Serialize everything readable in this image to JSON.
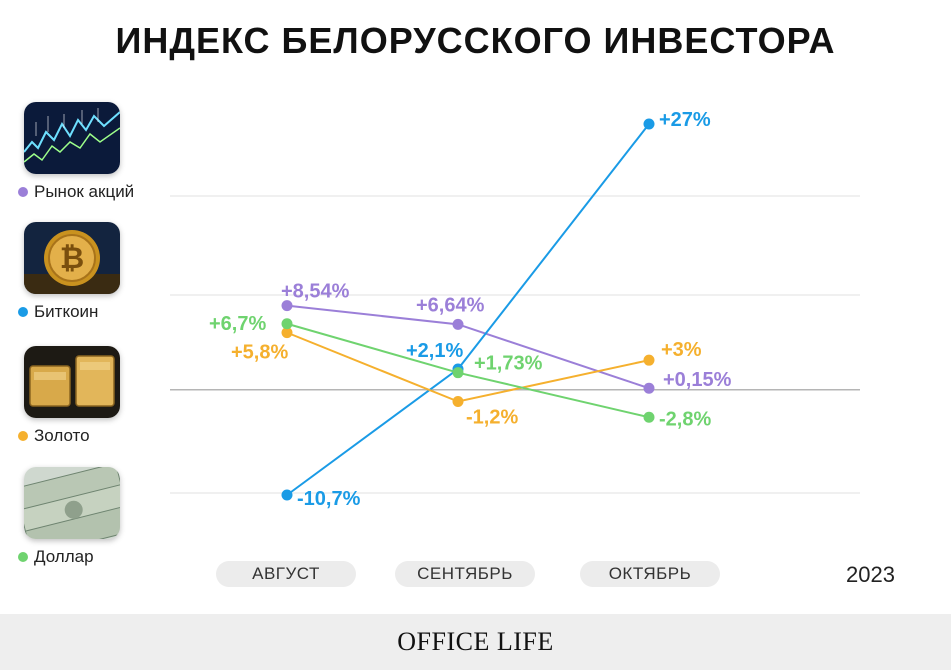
{
  "title": "ИНДЕКС БЕЛОРУССКОГО ИНВЕСТОРА",
  "legend": [
    {
      "label": "Рынок акций",
      "color": "#9b7fd8",
      "icon": "stock-chart-image"
    },
    {
      "label": "Биткоин",
      "color": "#1a9be6",
      "icon": "bitcoin-image"
    },
    {
      "label": "Золото",
      "color": "#f5b02e",
      "icon": "gold-bars-image"
    },
    {
      "label": "Доллар",
      "color": "#6fd36f",
      "icon": "dollar-bills-image"
    }
  ],
  "months": [
    "АВГУСТ",
    "СЕНТЯБРЬ",
    "ОКТЯБРЬ"
  ],
  "year": "2023",
  "footer": "OFFICE LIFE",
  "chart_data": {
    "type": "line",
    "x": [
      "АВГУСТ",
      "СЕНТЯБРЬ",
      "ОКТЯБРЬ"
    ],
    "series": [
      {
        "name": "Рынок акций",
        "color": "#9b7fd8",
        "values": [
          8.54,
          6.64,
          0.15
        ],
        "labels": [
          "+8,54%",
          "+6,64%",
          "+0,15%"
        ]
      },
      {
        "name": "Биткоин",
        "color": "#1a9be6",
        "values": [
          -10.7,
          2.1,
          27
        ],
        "labels": [
          "-10,7%",
          "+2,1%",
          "+27%"
        ]
      },
      {
        "name": "Золото",
        "color": "#f5b02e",
        "values": [
          5.8,
          -1.2,
          3
        ],
        "labels": [
          "+5,8%",
          "-1,2%",
          "+3%"
        ]
      },
      {
        "name": "Доллар",
        "color": "#6fd36f",
        "values": [
          6.7,
          1.73,
          -2.8
        ],
        "labels": [
          "+6,7%",
          "+1,73%",
          "-2,8%"
        ]
      }
    ],
    "ylim": [
      -10.7,
      27
    ],
    "grid": true
  }
}
